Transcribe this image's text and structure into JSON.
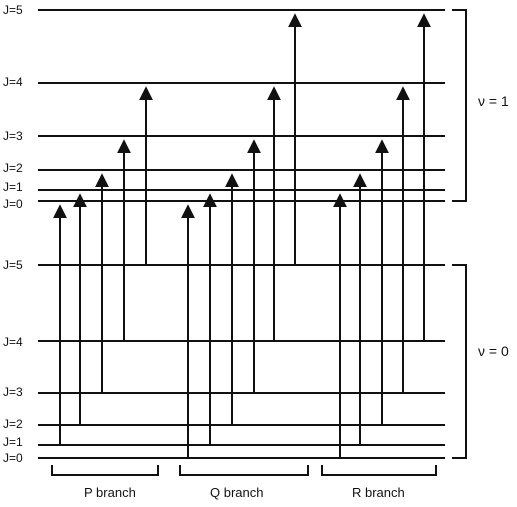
{
  "diagram": {
    "upper_band_label": "ν = 1",
    "lower_band_label": "ν = 0",
    "upper_levels": [
      "J=5",
      "J=4",
      "J=3",
      "J=2",
      "J=1",
      "J=0"
    ],
    "lower_levels": [
      "J=5",
      "J=4",
      "J=3",
      "J=2",
      "J=1",
      "J=0"
    ],
    "branches": [
      {
        "name": "P branch",
        "transitions": [
          {
            "from": 1,
            "to": 0
          },
          {
            "from": 2,
            "to": 1
          },
          {
            "from": 3,
            "to": 2
          },
          {
            "from": 4,
            "to": 3
          },
          {
            "from": 5,
            "to": 4
          }
        ]
      },
      {
        "name": "Q branch",
        "transitions": [
          {
            "from": 0,
            "to": 0
          },
          {
            "from": 1,
            "to": 1
          },
          {
            "from": 2,
            "to": 2
          },
          {
            "from": 3,
            "to": 3
          },
          {
            "from": 4,
            "to": 4
          },
          {
            "from": 5,
            "to": 5
          }
        ]
      },
      {
        "name": "R branch",
        "transitions": [
          {
            "from": 0,
            "to": 1
          },
          {
            "from": 1,
            "to": 2
          },
          {
            "from": 2,
            "to": 3
          },
          {
            "from": 3,
            "to": 4
          },
          {
            "from": 4,
            "to": 5
          }
        ]
      }
    ],
    "line_color": "#111111"
  }
}
